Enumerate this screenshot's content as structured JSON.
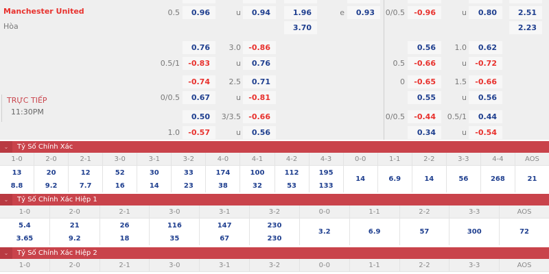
{
  "match": {
    "team": "Manchester United",
    "draw": "Hòa",
    "status": "TRỰC TIẾP",
    "time": "11:30PM"
  },
  "odds_rows": [
    {
      "hdp_label": "0.5",
      "hdp_odds": "0.96",
      "ou_label": "u",
      "ou_odds": "0.94",
      "x12": "1.96",
      "e_label": "e",
      "e_odds": "0.93",
      "h1_hdp_label": "0/0.5",
      "h1_hdp_odds": "-0.96",
      "h1_ou_label": "u",
      "h1_ou_odds": "0.80",
      "h1_x12": "2.51"
    },
    {
      "x12": "3.70",
      "h1_x12": "2.23"
    },
    {
      "hdp_odds": "0.76",
      "ou_label": "3.0",
      "ou_odds": "-0.86",
      "h1_hdp_odds": "0.56",
      "h1_ou_label": "1.0",
      "h1_ou_odds": "0.62"
    },
    {
      "hdp_label": "0.5/1",
      "hdp_odds": "-0.83",
      "ou_label": "u",
      "ou_odds": "0.76",
      "h1_hdp_label": "0.5",
      "h1_hdp_odds": "-0.66",
      "h1_ou_label": "u",
      "h1_ou_odds": "-0.72"
    },
    {
      "hdp_odds": "-0.74",
      "ou_label": "2.5",
      "ou_odds": "0.71",
      "h1_hdp_label": "0",
      "h1_hdp_odds": "-0.65",
      "h1_ou_label": "1.5",
      "h1_ou_odds": "-0.66"
    },
    {
      "hdp_label": "0/0.5",
      "hdp_odds": "0.67",
      "ou_label": "u",
      "ou_odds": "-0.81",
      "h1_hdp_odds": "0.55",
      "h1_ou_label": "u",
      "h1_ou_odds": "0.56"
    },
    {
      "hdp_odds": "0.50",
      "ou_label": "3/3.5",
      "ou_odds": "-0.66",
      "h1_hdp_label": "0/0.5",
      "h1_hdp_odds": "-0.44",
      "h1_ou_label": "0.5/1",
      "h1_ou_odds": "0.44"
    },
    {
      "hdp_label": "1.0",
      "hdp_odds": "-0.57",
      "ou_label": "u",
      "ou_odds": "0.56",
      "h1_hdp_odds": "0.34",
      "h1_ou_label": "u",
      "h1_ou_odds": "-0.54"
    }
  ],
  "colors": {
    "positive": "#1f3f8f",
    "negative": "#e8312d",
    "section_header": "#c9434b"
  },
  "sections": [
    {
      "title": "Tỷ Số Chính Xác",
      "icon": "chevron-down-icon",
      "columns": [
        {
          "score": "1-0",
          "values": [
            "13",
            "8.8"
          ]
        },
        {
          "score": "2-0",
          "values": [
            "20",
            "9.2"
          ]
        },
        {
          "score": "2-1",
          "values": [
            "12",
            "7.7"
          ]
        },
        {
          "score": "3-0",
          "values": [
            "52",
            "16"
          ]
        },
        {
          "score": "3-1",
          "values": [
            "30",
            "14"
          ]
        },
        {
          "score": "3-2",
          "values": [
            "33",
            "23"
          ]
        },
        {
          "score": "4-0",
          "values": [
            "174",
            "38"
          ]
        },
        {
          "score": "4-1",
          "values": [
            "100",
            "32"
          ]
        },
        {
          "score": "4-2",
          "values": [
            "112",
            "53"
          ]
        },
        {
          "score": "4-3",
          "values": [
            "195",
            "133"
          ]
        },
        {
          "score": "0-0",
          "values": [
            "14"
          ]
        },
        {
          "score": "1-1",
          "values": [
            "6.9"
          ]
        },
        {
          "score": "2-2",
          "values": [
            "14"
          ]
        },
        {
          "score": "3-3",
          "values": [
            "56"
          ]
        },
        {
          "score": "4-4",
          "values": [
            "268"
          ]
        },
        {
          "score": "AOS",
          "values": [
            "21"
          ]
        }
      ]
    },
    {
      "title": "Tỷ Số Chính Xác Hiệp 1",
      "icon": "chevron-down-icon",
      "columns": [
        {
          "score": "1-0",
          "values": [
            "5.4",
            "3.65"
          ]
        },
        {
          "score": "2-0",
          "values": [
            "21",
            "9.2"
          ]
        },
        {
          "score": "2-1",
          "values": [
            "26",
            "18"
          ]
        },
        {
          "score": "3-0",
          "values": [
            "116",
            "35"
          ]
        },
        {
          "score": "3-1",
          "values": [
            "147",
            "67"
          ]
        },
        {
          "score": "3-2",
          "values": [
            "230",
            "230"
          ]
        },
        {
          "score": "0-0",
          "values": [
            "3.2"
          ]
        },
        {
          "score": "1-1",
          "values": [
            "6.9"
          ]
        },
        {
          "score": "2-2",
          "values": [
            "57"
          ]
        },
        {
          "score": "3-3",
          "values": [
            "300"
          ]
        },
        {
          "score": "AOS",
          "values": [
            "72"
          ]
        }
      ]
    },
    {
      "title": "Tỷ Số Chính Xác Hiệp 2",
      "icon": "chevron-down-icon",
      "columns": [
        {
          "score": "1-0"
        },
        {
          "score": "2-0"
        },
        {
          "score": "2-1"
        },
        {
          "score": "3-0"
        },
        {
          "score": "3-1"
        },
        {
          "score": "3-2"
        },
        {
          "score": "0-0"
        },
        {
          "score": "1-1"
        },
        {
          "score": "2-2"
        },
        {
          "score": "3-3"
        },
        {
          "score": "AOS"
        }
      ]
    }
  ]
}
